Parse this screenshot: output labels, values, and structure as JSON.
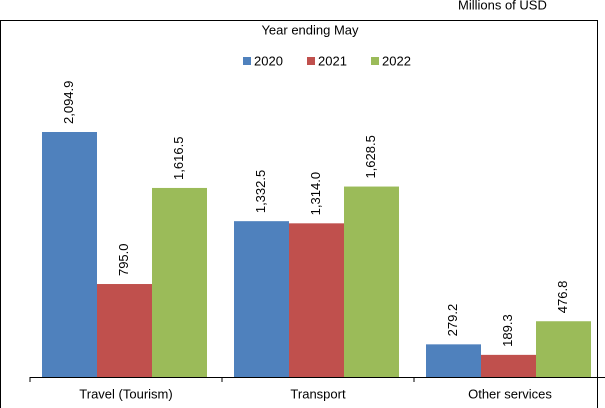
{
  "chart_data": {
    "type": "bar",
    "unit_label": "Millions of USD",
    "subtitle": "Year ending May",
    "categories": [
      "Travel (Tourism)",
      "Transport",
      "Other services"
    ],
    "series": [
      {
        "name": "2020",
        "color": "#4f81bd",
        "values": [
          2094.9,
          1332.5,
          279.2
        ],
        "value_labels": [
          "2,094.9",
          "1,332.5",
          "279.2"
        ]
      },
      {
        "name": "2021",
        "color": "#c0504d",
        "values": [
          795.0,
          1314.0,
          189.3
        ],
        "value_labels": [
          "795.0",
          "1,314.0",
          "189.3"
        ]
      },
      {
        "name": "2022",
        "color": "#9bbb59",
        "values": [
          1616.5,
          1628.5,
          476.8
        ],
        "value_labels": [
          "1,616.5",
          "1,628.5",
          "476.8"
        ]
      }
    ]
  }
}
